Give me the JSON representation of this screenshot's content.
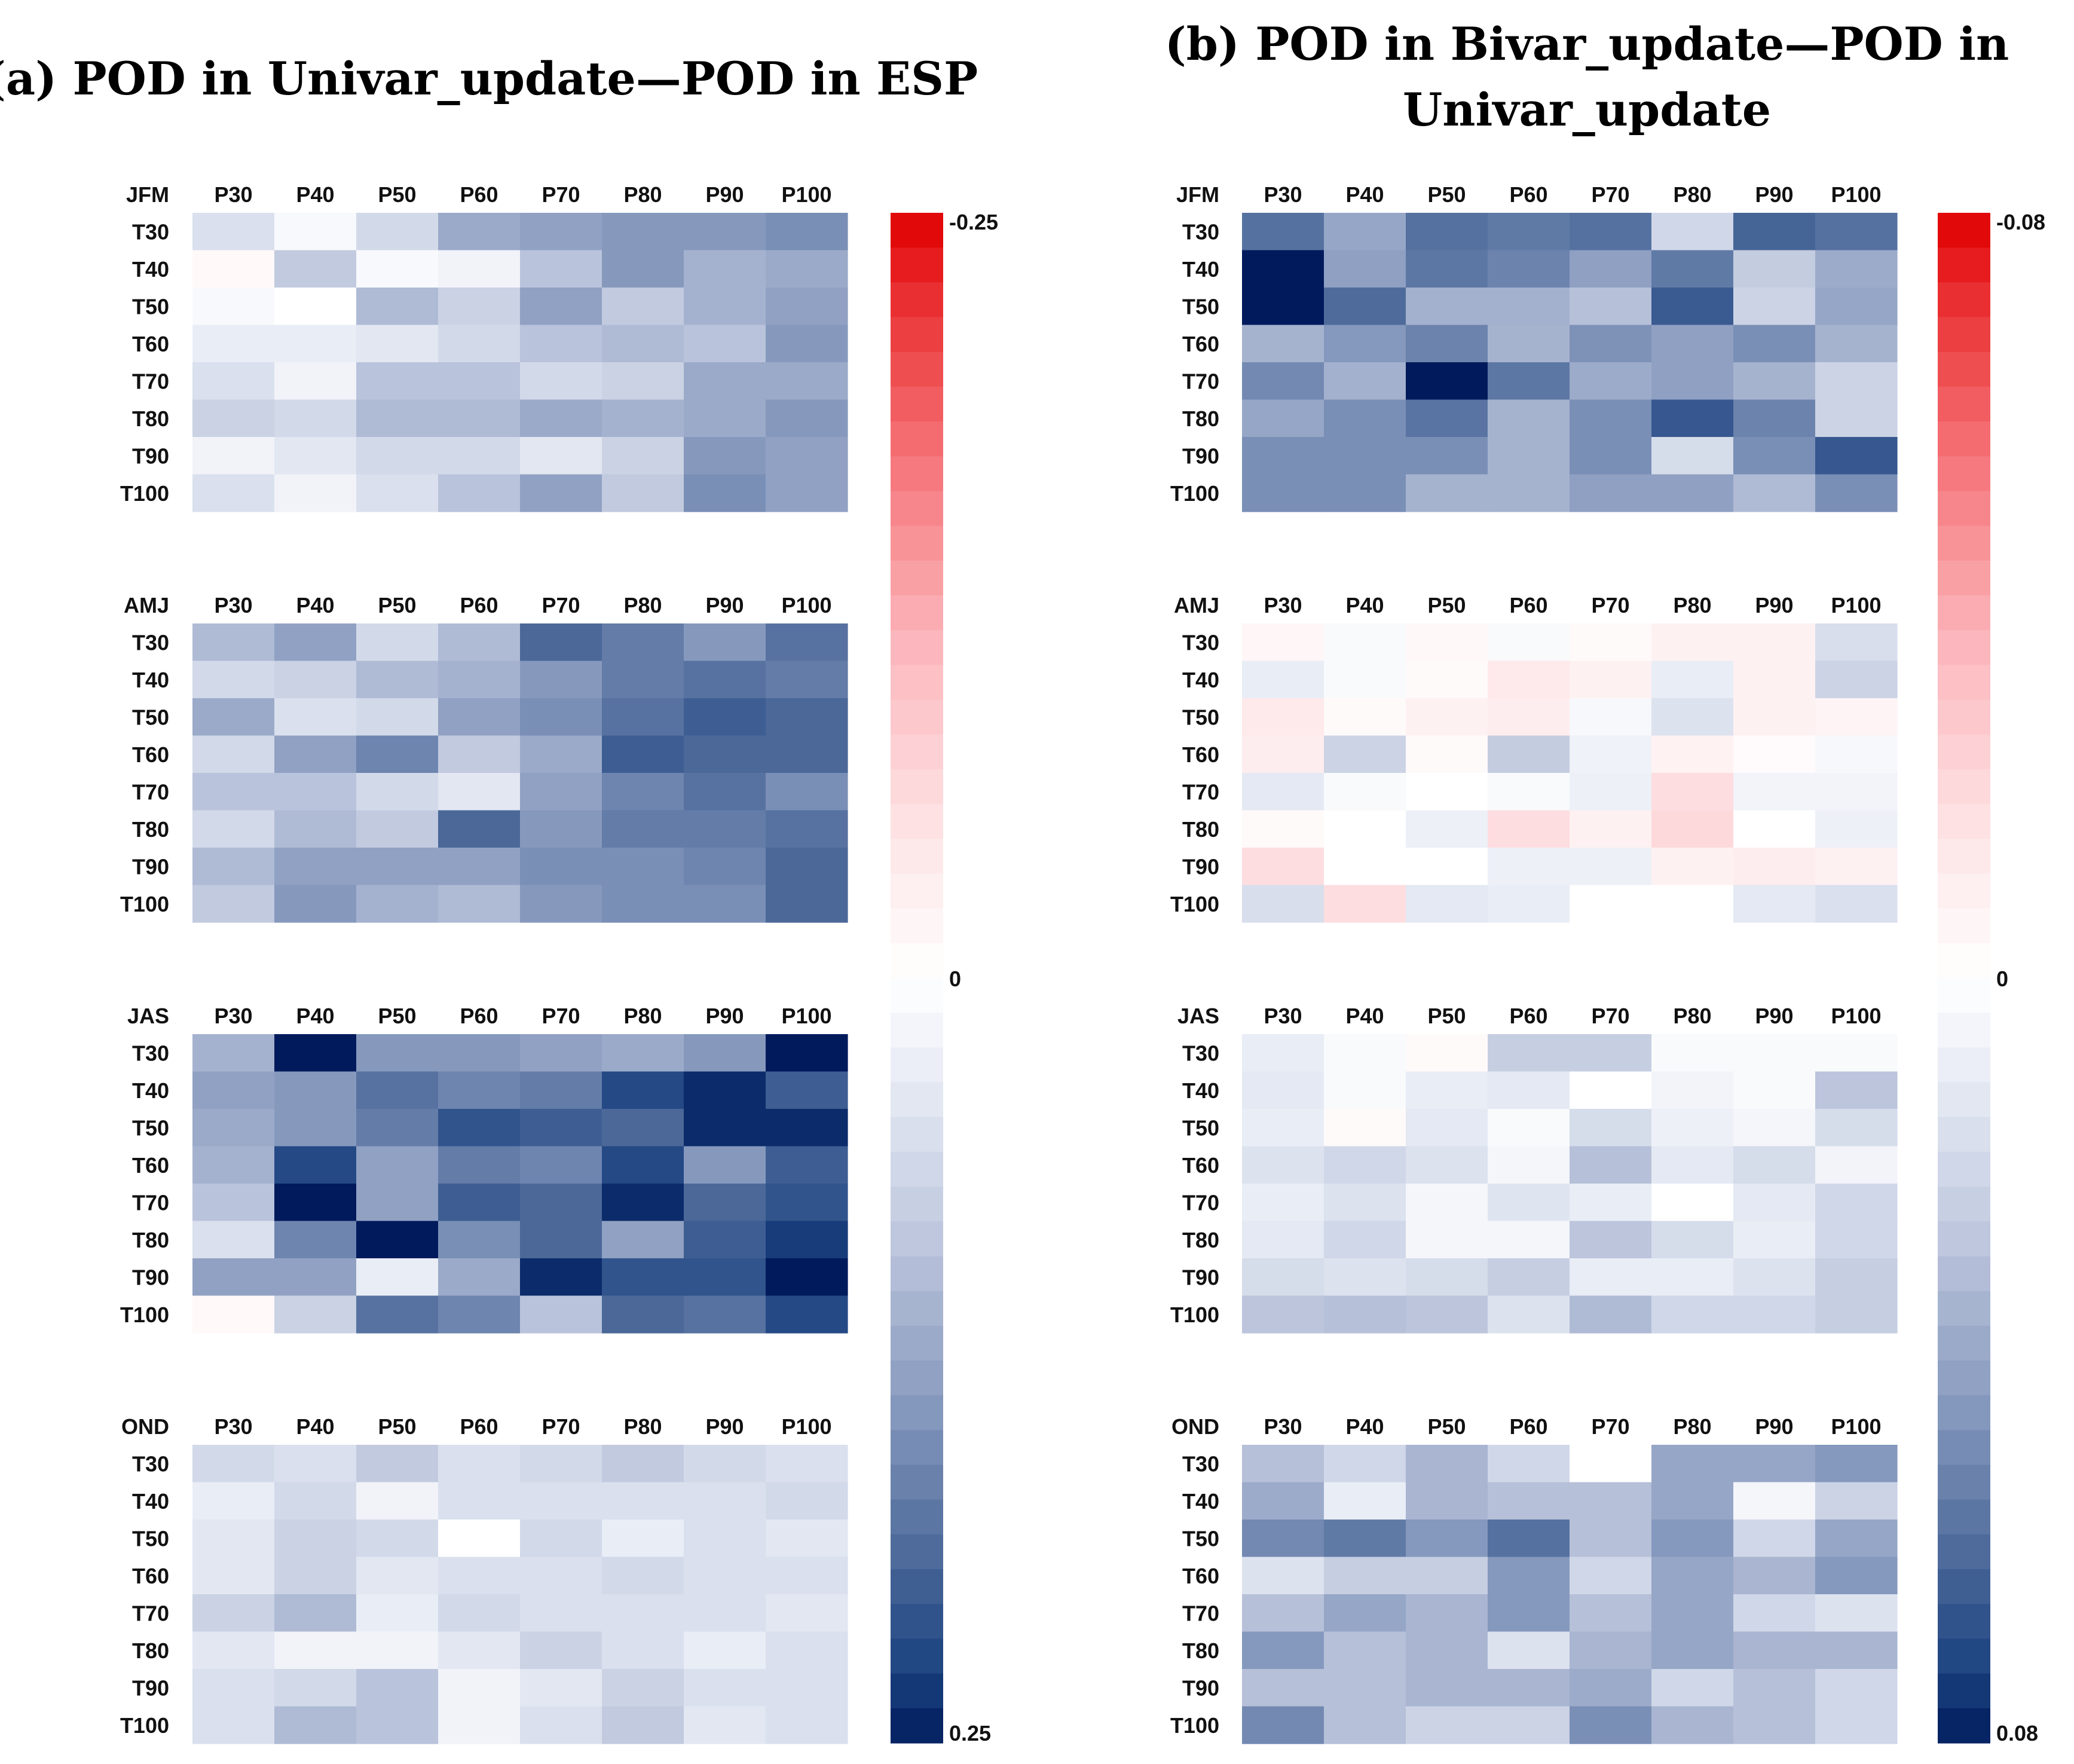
{
  "chart_data": [
    {
      "type": "heatmap",
      "title": "(a) POD in Univar_update—POD in ESP",
      "x_labels": [
        "P30",
        "P40",
        "P50",
        "P60",
        "P70",
        "P80",
        "P90",
        "P100"
      ],
      "y_labels": [
        "T30",
        "T40",
        "T50",
        "T60",
        "T70",
        "T80",
        "T90",
        "T100"
      ],
      "colorbar": {
        "min": -0.25,
        "max": 0.25,
        "ticks": [
          -0.25,
          0,
          0.25
        ],
        "tick_labels": [
          "-0.25",
          "0",
          "0.25"
        ],
        "low_color": "#e00000",
        "mid_color": "#ffffff",
        "high_color": "#001a5c"
      },
      "panels": [
        {
          "label": "JFM",
          "values": [
            [
              0.05,
              0.01,
              0.06,
              0.12,
              0.13,
              0.14,
              0.14,
              0.15
            ],
            [
              -0.01,
              0.08,
              0.01,
              0.02,
              0.09,
              0.14,
              0.11,
              0.12
            ],
            [
              0.01,
              0.0,
              0.1,
              0.07,
              0.13,
              0.08,
              0.11,
              0.13
            ],
            [
              0.03,
              0.03,
              0.04,
              0.06,
              0.09,
              0.1,
              0.09,
              0.14
            ],
            [
              0.05,
              0.02,
              0.09,
              0.09,
              0.06,
              0.07,
              0.12,
              0.12
            ],
            [
              0.07,
              0.06,
              0.1,
              0.1,
              0.12,
              0.11,
              0.12,
              0.14
            ],
            [
              0.02,
              0.04,
              0.06,
              0.06,
              0.04,
              0.07,
              0.14,
              0.13
            ],
            [
              0.05,
              0.02,
              0.05,
              0.09,
              0.13,
              0.08,
              0.15,
              0.13
            ]
          ]
        },
        {
          "label": "AMJ",
          "values": [
            [
              0.1,
              0.13,
              0.06,
              0.1,
              0.19,
              0.17,
              0.14,
              0.18
            ],
            [
              0.06,
              0.07,
              0.1,
              0.11,
              0.14,
              0.17,
              0.18,
              0.17
            ],
            [
              0.12,
              0.05,
              0.06,
              0.13,
              0.15,
              0.18,
              0.2,
              0.19
            ],
            [
              0.06,
              0.13,
              0.16,
              0.08,
              0.12,
              0.2,
              0.19,
              0.19
            ],
            [
              0.09,
              0.09,
              0.06,
              0.04,
              0.13,
              0.16,
              0.18,
              0.15
            ],
            [
              0.06,
              0.1,
              0.08,
              0.19,
              0.14,
              0.17,
              0.17,
              0.18
            ],
            [
              0.1,
              0.13,
              0.13,
              0.13,
              0.15,
              0.15,
              0.16,
              0.19
            ],
            [
              0.08,
              0.14,
              0.11,
              0.1,
              0.14,
              0.15,
              0.15,
              0.19
            ]
          ]
        },
        {
          "label": "JAS",
          "values": [
            [
              0.11,
              0.25,
              0.14,
              0.14,
              0.13,
              0.12,
              0.14,
              0.25
            ],
            [
              0.13,
              0.14,
              0.18,
              0.16,
              0.17,
              0.22,
              0.24,
              0.2
            ],
            [
              0.12,
              0.14,
              0.17,
              0.21,
              0.2,
              0.19,
              0.24,
              0.24
            ],
            [
              0.11,
              0.22,
              0.13,
              0.17,
              0.16,
              0.22,
              0.14,
              0.2
            ],
            [
              0.09,
              0.25,
              0.13,
              0.2,
              0.19,
              0.24,
              0.19,
              0.21
            ],
            [
              0.05,
              0.16,
              0.25,
              0.15,
              0.19,
              0.13,
              0.2,
              0.23
            ],
            [
              0.13,
              0.13,
              0.03,
              0.12,
              0.24,
              0.21,
              0.21,
              0.25
            ],
            [
              -0.01,
              0.07,
              0.18,
              0.16,
              0.09,
              0.19,
              0.18,
              0.22
            ]
          ]
        },
        {
          "label": "OND",
          "values": [
            [
              0.06,
              0.05,
              0.08,
              0.05,
              0.06,
              0.08,
              0.06,
              0.05
            ],
            [
              0.03,
              0.06,
              0.02,
              0.05,
              0.05,
              0.05,
              0.05,
              0.06
            ],
            [
              0.04,
              0.07,
              0.06,
              0.0,
              0.06,
              0.03,
              0.05,
              0.04
            ],
            [
              0.04,
              0.07,
              0.04,
              0.05,
              0.05,
              0.06,
              0.05,
              0.05
            ],
            [
              0.07,
              0.1,
              0.03,
              0.06,
              0.05,
              0.05,
              0.05,
              0.04
            ],
            [
              0.04,
              0.02,
              0.02,
              0.04,
              0.07,
              0.05,
              0.03,
              0.05
            ],
            [
              0.05,
              0.06,
              0.09,
              0.02,
              0.04,
              0.07,
              0.05,
              0.05
            ],
            [
              0.05,
              0.1,
              0.09,
              0.02,
              0.05,
              0.08,
              0.04,
              0.05
            ]
          ]
        }
      ]
    },
    {
      "type": "heatmap",
      "title_lines": [
        "(b) POD in Bivar_update—POD in",
        "Univar_update"
      ],
      "x_labels": [
        "P30",
        "P40",
        "P50",
        "P60",
        "P70",
        "P80",
        "P90",
        "P100"
      ],
      "y_labels": [
        "T30",
        "T40",
        "T50",
        "T60",
        "T70",
        "T80",
        "T90",
        "T100"
      ],
      "colorbar": {
        "min": -0.08,
        "max": 0.08,
        "ticks": [
          -0.08,
          0,
          0.08
        ],
        "tick_labels": [
          "-0.08",
          "0",
          "0.08"
        ],
        "low_color": "#e00000",
        "mid_color": "#ffffff",
        "high_color": "#001a5c"
      },
      "panels": [
        {
          "label": "JFM",
          "values": [
            [
              0.058,
              0.04,
              0.058,
              0.055,
              0.058,
              0.02,
              0.062,
              0.058
            ],
            [
              0.08,
              0.042,
              0.056,
              0.052,
              0.042,
              0.055,
              0.025,
              0.038
            ],
            [
              0.08,
              0.06,
              0.036,
              0.036,
              0.03,
              0.065,
              0.022,
              0.04
            ],
            [
              0.035,
              0.045,
              0.052,
              0.035,
              0.047,
              0.042,
              0.048,
              0.035
            ],
            [
              0.05,
              0.036,
              0.08,
              0.056,
              0.038,
              0.042,
              0.035,
              0.022
            ],
            [
              0.04,
              0.048,
              0.057,
              0.035,
              0.048,
              0.066,
              0.052,
              0.022
            ],
            [
              0.048,
              0.048,
              0.048,
              0.035,
              0.048,
              0.018,
              0.048,
              0.066
            ],
            [
              0.048,
              0.048,
              0.035,
              0.035,
              0.042,
              0.042,
              0.032,
              0.048
            ]
          ]
        },
        {
          "label": "AMJ",
          "values": [
            [
              -0.005,
              0.003,
              -0.004,
              0.003,
              -0.003,
              -0.008,
              -0.008,
              0.017
            ],
            [
              0.01,
              0.003,
              -0.003,
              -0.012,
              -0.008,
              0.01,
              -0.008,
              0.022
            ],
            [
              -0.012,
              -0.003,
              -0.008,
              -0.01,
              0.004,
              0.015,
              -0.008,
              -0.006
            ],
            [
              -0.01,
              0.022,
              -0.003,
              0.025,
              0.007,
              -0.007,
              -0.002,
              0.004
            ],
            [
              0.012,
              0.003,
              0.0,
              0.003,
              0.008,
              -0.018,
              0.006,
              0.006
            ],
            [
              -0.003,
              0.0,
              0.008,
              -0.018,
              -0.008,
              -0.02,
              0.0,
              0.008
            ],
            [
              -0.018,
              0.0,
              0.0,
              0.008,
              0.008,
              -0.008,
              -0.01,
              -0.008
            ],
            [
              0.017,
              -0.018,
              0.012,
              0.01,
              0.0,
              0.0,
              0.012,
              0.016
            ]
          ]
        },
        {
          "label": "JAS",
          "values": [
            [
              0.01,
              0.003,
              -0.003,
              0.024,
              0.024,
              0.003,
              0.003,
              0.003
            ],
            [
              0.012,
              0.003,
              0.01,
              0.012,
              0.0,
              0.006,
              0.003,
              0.028
            ],
            [
              0.01,
              -0.003,
              0.012,
              0.003,
              0.018,
              0.008,
              0.005,
              0.018
            ],
            [
              0.015,
              0.02,
              0.015,
              0.005,
              0.03,
              0.012,
              0.018,
              0.006
            ],
            [
              0.01,
              0.015,
              0.005,
              0.014,
              0.01,
              0.0,
              0.012,
              0.02
            ],
            [
              0.012,
              0.02,
              0.005,
              0.005,
              0.028,
              0.018,
              0.01,
              0.02
            ],
            [
              0.018,
              0.015,
              0.018,
              0.024,
              0.01,
              0.01,
              0.015,
              0.024
            ],
            [
              0.028,
              0.03,
              0.028,
              0.015,
              0.032,
              0.02,
              0.02,
              0.024
            ]
          ]
        },
        {
          "label": "OND",
          "values": [
            [
              0.03,
              0.02,
              0.034,
              0.02,
              0.0,
              0.04,
              0.04,
              0.045
            ],
            [
              0.038,
              0.01,
              0.034,
              0.03,
              0.03,
              0.04,
              0.005,
              0.022
            ],
            [
              0.05,
              0.055,
              0.045,
              0.058,
              0.03,
              0.045,
              0.02,
              0.04
            ],
            [
              0.015,
              0.024,
              0.024,
              0.045,
              0.02,
              0.04,
              0.034,
              0.045
            ],
            [
              0.03,
              0.04,
              0.034,
              0.045,
              0.03,
              0.04,
              0.02,
              0.015
            ],
            [
              0.045,
              0.03,
              0.034,
              0.015,
              0.034,
              0.04,
              0.034,
              0.034
            ],
            [
              0.03,
              0.03,
              0.034,
              0.034,
              0.038,
              0.02,
              0.03,
              0.02
            ],
            [
              0.05,
              0.03,
              0.022,
              0.022,
              0.048,
              0.034,
              0.03,
              0.02
            ]
          ]
        }
      ]
    }
  ]
}
